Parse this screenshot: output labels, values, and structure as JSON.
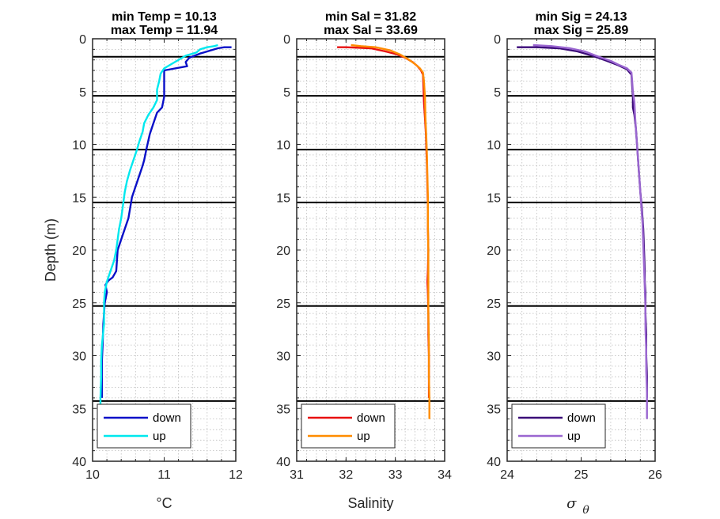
{
  "ylabel": "Depth (m)",
  "chart_data": [
    {
      "type": "line",
      "title": [
        "min Temp = 10.13",
        "max Temp = 11.94"
      ],
      "xlabel": "°C",
      "xlim": [
        10,
        12
      ],
      "ylim": [
        0,
        40
      ],
      "y_reversed": true,
      "x_ticks": [
        "10",
        "11",
        "12"
      ],
      "y_ticks": [
        "0",
        "5",
        "10",
        "15",
        "20",
        "25",
        "30",
        "35",
        "40"
      ],
      "grid": "minor-dotted",
      "legend": "bottom-left",
      "hlines": [
        1.7,
        5.4,
        10.5,
        15.5,
        25.3,
        34.3
      ],
      "series": [
        {
          "name": "down",
          "color": "#0a10c8",
          "points": [
            [
              11.94,
              0.8
            ],
            [
              11.84,
              0.8
            ],
            [
              11.75,
              0.9
            ],
            [
              11.5,
              1.4
            ],
            [
              11.35,
              1.8
            ],
            [
              11.3,
              2.2
            ],
            [
              11.32,
              2.6
            ],
            [
              11.0,
              3.0
            ],
            [
              11.0,
              4.0
            ],
            [
              11.0,
              5.5
            ],
            [
              10.97,
              6.5
            ],
            [
              10.9,
              7.0
            ],
            [
              10.85,
              8.0
            ],
            [
              10.8,
              9.0
            ],
            [
              10.75,
              10.5
            ],
            [
              10.72,
              11.5
            ],
            [
              10.7,
              12.0
            ],
            [
              10.65,
              13.0
            ],
            [
              10.6,
              14.0
            ],
            [
              10.55,
              15.0
            ],
            [
              10.5,
              17.0
            ],
            [
              10.45,
              18.0
            ],
            [
              10.4,
              19.0
            ],
            [
              10.35,
              20.0
            ],
            [
              10.33,
              22.0
            ],
            [
              10.28,
              22.6
            ],
            [
              10.22,
              22.9
            ],
            [
              10.18,
              23.3
            ],
            [
              10.2,
              24.0
            ],
            [
              10.17,
              25.0
            ],
            [
              10.15,
              27.0
            ],
            [
              10.14,
              29.0
            ],
            [
              10.13,
              30.5
            ],
            [
              10.13,
              32.0
            ],
            [
              10.13,
              34.0
            ]
          ]
        },
        {
          "name": "up",
          "color": "#00e8ee",
          "points": [
            [
              11.75,
              0.6
            ],
            [
              11.7,
              0.7
            ],
            [
              11.6,
              0.8
            ],
            [
              11.5,
              1.0
            ],
            [
              11.45,
              1.3
            ],
            [
              11.3,
              1.6
            ],
            [
              11.15,
              2.2
            ],
            [
              11.0,
              2.8
            ],
            [
              10.95,
              3.3
            ],
            [
              10.93,
              4.0
            ],
            [
              10.9,
              4.8
            ],
            [
              10.9,
              5.8
            ],
            [
              10.85,
              6.5
            ],
            [
              10.78,
              7.2
            ],
            [
              10.72,
              8.0
            ],
            [
              10.7,
              8.8
            ],
            [
              10.65,
              9.8
            ],
            [
              10.62,
              10.5
            ],
            [
              10.57,
              11.5
            ],
            [
              10.52,
              12.5
            ],
            [
              10.48,
              13.5
            ],
            [
              10.45,
              14.5
            ],
            [
              10.43,
              15.5
            ],
            [
              10.4,
              17.0
            ],
            [
              10.37,
              18.0
            ],
            [
              10.35,
              19.0
            ],
            [
              10.33,
              20.0
            ],
            [
              10.3,
              21.0
            ],
            [
              10.25,
              22.0
            ],
            [
              10.2,
              23.0
            ],
            [
              10.17,
              24.0
            ],
            [
              10.16,
              25.0
            ],
            [
              10.16,
              27.0
            ],
            [
              10.13,
              29.0
            ],
            [
              10.12,
              30.5
            ],
            [
              10.12,
              32.0
            ],
            [
              10.11,
              34.0
            ],
            [
              10.11,
              34.8
            ]
          ]
        }
      ]
    },
    {
      "type": "line",
      "title": [
        "min Sal = 31.82",
        "max Sal = 33.69"
      ],
      "xlabel": "Salinity",
      "xlim": [
        31,
        34
      ],
      "ylim": [
        0,
        40
      ],
      "y_reversed": true,
      "x_ticks": [
        "31",
        "32",
        "33",
        "34"
      ],
      "y_ticks": [
        "0",
        "5",
        "10",
        "15",
        "20",
        "25",
        "30",
        "35",
        "40"
      ],
      "grid": "minor-dotted",
      "legend": "bottom-left",
      "hlines": [
        1.7,
        5.4,
        10.5,
        15.5,
        25.3,
        34.3
      ],
      "series": [
        {
          "name": "down",
          "color": "#e81010",
          "points": [
            [
              31.82,
              0.8
            ],
            [
              32.0,
              0.8
            ],
            [
              32.5,
              0.9
            ],
            [
              32.8,
              1.2
            ],
            [
              33.05,
              1.5
            ],
            [
              33.2,
              1.8
            ],
            [
              33.35,
              2.2
            ],
            [
              33.45,
              2.6
            ],
            [
              33.52,
              3.0
            ],
            [
              33.56,
              3.4
            ],
            [
              33.57,
              4.5
            ],
            [
              33.58,
              6.0
            ],
            [
              33.6,
              7.5
            ],
            [
              33.62,
              9.0
            ],
            [
              33.63,
              10.5
            ],
            [
              33.64,
              12.0
            ],
            [
              33.65,
              14.0
            ],
            [
              33.66,
              16.0
            ],
            [
              33.66,
              18.0
            ],
            [
              33.67,
              20.0
            ],
            [
              33.66,
              22.0
            ],
            [
              33.65,
              23.0
            ],
            [
              33.66,
              24.0
            ],
            [
              33.67,
              26.0
            ],
            [
              33.67,
              28.0
            ],
            [
              33.68,
              30.0
            ],
            [
              33.68,
              32.0
            ],
            [
              33.68,
              34.0
            ]
          ]
        },
        {
          "name": "up",
          "color": "#ff8c00",
          "points": [
            [
              32.1,
              0.6
            ],
            [
              32.3,
              0.7
            ],
            [
              32.6,
              0.8
            ],
            [
              32.9,
              1.1
            ],
            [
              33.1,
              1.5
            ],
            [
              33.25,
              1.9
            ],
            [
              33.4,
              2.4
            ],
            [
              33.5,
              2.8
            ],
            [
              33.56,
              3.2
            ],
            [
              33.58,
              4.0
            ],
            [
              33.6,
              5.5
            ],
            [
              33.61,
              7.5
            ],
            [
              33.63,
              9.5
            ],
            [
              33.64,
              11.0
            ],
            [
              33.65,
              13.0
            ],
            [
              33.66,
              15.0
            ],
            [
              33.66,
              17.5
            ],
            [
              33.67,
              20.0
            ],
            [
              33.67,
              23.0
            ],
            [
              33.67,
              26.0
            ],
            [
              33.68,
              29.0
            ],
            [
              33.68,
              32.0
            ],
            [
              33.69,
              34.0
            ],
            [
              33.69,
              36.0
            ]
          ]
        }
      ]
    },
    {
      "type": "line",
      "title": [
        "min Sig = 24.13",
        "max Sig = 25.89"
      ],
      "xlabel": "σ θ",
      "xlabel_parts": [
        "σ",
        "θ"
      ],
      "xlim": [
        24,
        26
      ],
      "ylim": [
        0,
        40
      ],
      "y_reversed": true,
      "x_ticks": [
        "24",
        "25",
        "26"
      ],
      "y_ticks": [
        "0",
        "5",
        "10",
        "15",
        "20",
        "25",
        "30",
        "35",
        "40"
      ],
      "grid": "minor-dotted",
      "legend": "bottom-left",
      "hlines": [
        1.7,
        5.4,
        10.5,
        15.5,
        25.3,
        34.3
      ],
      "series": [
        {
          "name": "down",
          "color": "#3a0a78",
          "points": [
            [
              24.13,
              0.8
            ],
            [
              24.4,
              0.8
            ],
            [
              24.7,
              0.9
            ],
            [
              24.95,
              1.2
            ],
            [
              25.15,
              1.6
            ],
            [
              25.35,
              2.1
            ],
            [
              25.5,
              2.5
            ],
            [
              25.62,
              2.9
            ],
            [
              25.68,
              3.4
            ],
            [
              25.69,
              4.5
            ],
            [
              25.7,
              5.5
            ],
            [
              25.7,
              6.5
            ],
            [
              25.72,
              7.2
            ],
            [
              25.74,
              8.5
            ],
            [
              25.76,
              10.5
            ],
            [
              25.78,
              12.5
            ],
            [
              25.8,
              14.5
            ],
            [
              25.82,
              16.0
            ],
            [
              25.84,
              18.0
            ],
            [
              25.85,
              20.0
            ],
            [
              25.86,
              22.0
            ],
            [
              25.86,
              23.0
            ],
            [
              25.87,
              24.0
            ],
            [
              25.87,
              26.0
            ],
            [
              25.88,
              28.0
            ],
            [
              25.88,
              30.0
            ],
            [
              25.89,
              32.0
            ],
            [
              25.89,
              34.0
            ]
          ]
        },
        {
          "name": "up",
          "color": "#9a66d0",
          "points": [
            [
              24.35,
              0.6
            ],
            [
              24.6,
              0.7
            ],
            [
              24.85,
              0.9
            ],
            [
              25.05,
              1.2
            ],
            [
              25.2,
              1.6
            ],
            [
              25.4,
              2.1
            ],
            [
              25.52,
              2.5
            ],
            [
              25.62,
              2.8
            ],
            [
              25.68,
              3.2
            ],
            [
              25.69,
              4.0
            ],
            [
              25.7,
              5.0
            ],
            [
              25.72,
              6.0
            ],
            [
              25.73,
              7.5
            ],
            [
              25.75,
              9.5
            ],
            [
              25.77,
              11.5
            ],
            [
              25.79,
              13.5
            ],
            [
              25.81,
              15.5
            ],
            [
              25.83,
              17.5
            ],
            [
              25.84,
              19.5
            ],
            [
              25.85,
              21.5
            ],
            [
              25.86,
              23.5
            ],
            [
              25.87,
              25.5
            ],
            [
              25.87,
              27.5
            ],
            [
              25.88,
              29.5
            ],
            [
              25.88,
              31.5
            ],
            [
              25.89,
              33.5
            ],
            [
              25.89,
              36.0
            ]
          ]
        }
      ]
    }
  ]
}
